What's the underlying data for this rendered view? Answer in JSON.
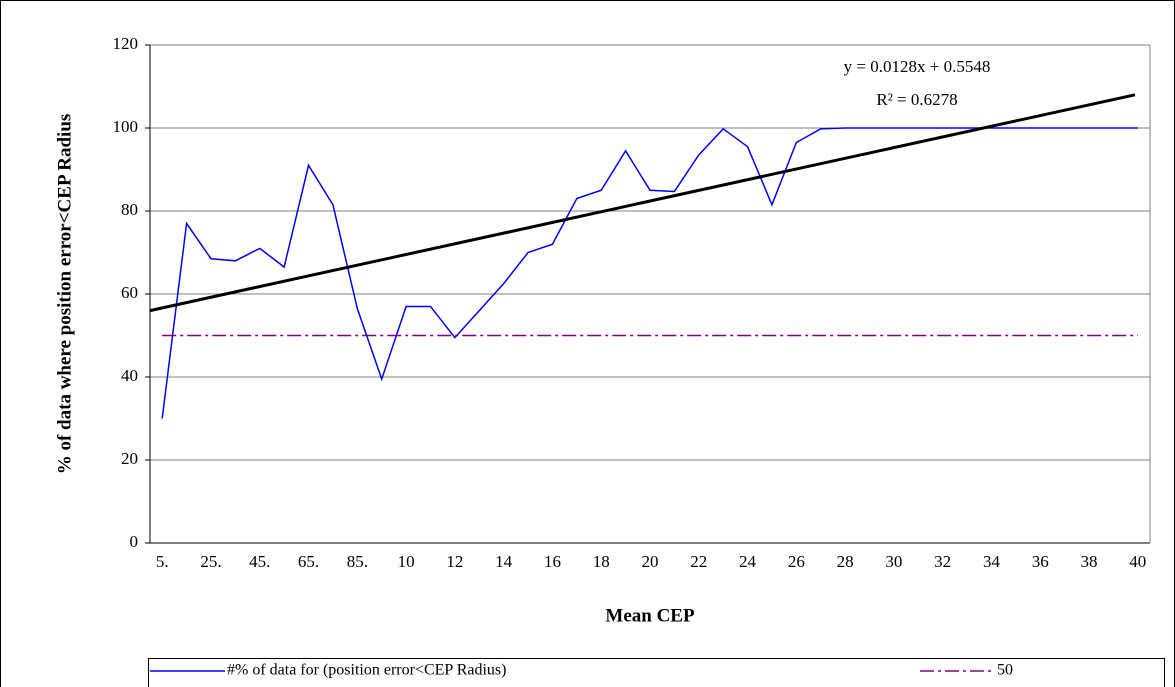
{
  "chart_data": {
    "type": "line",
    "xlabel": "Mean CEP",
    "ylabel": "% of data where position error<CEP Radius",
    "annotations": [
      "y = 0.0128x + 0.5548",
      "R² = 0.6278"
    ],
    "categories": [
      "5.",
      null,
      "25.",
      null,
      "45.",
      null,
      "65.",
      null,
      "85.",
      null,
      "10",
      null,
      "12",
      null,
      "14",
      null,
      "16",
      null,
      "18",
      null,
      "20",
      null,
      "22",
      null,
      "24",
      null,
      "26",
      null,
      "28",
      null,
      "30",
      null,
      "32",
      null,
      "34",
      null,
      "36",
      null,
      "38",
      null,
      "40"
    ],
    "series": [
      {
        "name": "#% of data for (position error<CEP Radius)",
        "color": "#0000ff",
        "dash": "solid",
        "values": [
          30,
          77,
          68.5,
          68,
          71,
          66.5,
          91,
          81.5,
          56.5,
          39.5,
          57,
          57,
          49.5,
          56,
          62.5,
          70,
          72,
          83,
          85,
          94.5,
          85,
          84.7,
          93.5,
          99.8,
          95.5,
          81.5,
          96.5,
          99.8,
          100,
          100,
          100,
          100,
          100,
          100,
          100,
          100,
          100,
          100,
          100,
          100,
          100
        ]
      },
      {
        "name": "50",
        "color": "#800080",
        "dash": "dashdot",
        "values": [
          50,
          50,
          50,
          50,
          50,
          50,
          50,
          50,
          50,
          50,
          50,
          50,
          50,
          50,
          50,
          50,
          50,
          50,
          50,
          50,
          50,
          50,
          50,
          50,
          50,
          50,
          50,
          50,
          50,
          50,
          50,
          50,
          50,
          50,
          50,
          50,
          50,
          50,
          50,
          50,
          50
        ]
      }
    ],
    "trendline": {
      "color": "#000000",
      "values": [
        56,
        108
      ]
    },
    "ylim": [
      0,
      120
    ],
    "yticks": [
      0,
      20,
      40,
      60,
      80,
      100,
      120
    ],
    "grid": true,
    "legend": "bottom"
  }
}
